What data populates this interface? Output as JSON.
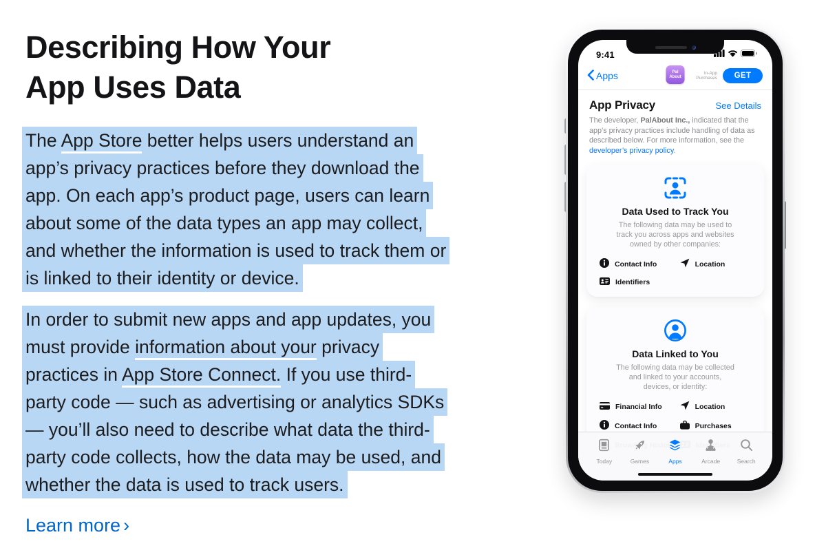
{
  "colors": {
    "accent_blue": "#007aff",
    "link_blue": "#0066cc",
    "selection_highlight": "#b8d7f4",
    "app_icon_purple": "#9b5be0",
    "muted_gray": "#8b8b90"
  },
  "article": {
    "title_lines": [
      "Describing How Your",
      "App Uses Data"
    ],
    "paragraphs": [
      {
        "lines": [
          [
            {
              "t": "The "
            },
            {
              "t": "App Store",
              "u": true
            },
            {
              "t": " better helps users understand an"
            }
          ],
          [
            {
              "t": "app’s privacy practices before they download the"
            }
          ],
          [
            {
              "t": "app. On each app’s product page, users can learn"
            }
          ],
          [
            {
              "t": "about some of the data types an app may collect,"
            }
          ],
          [
            {
              "t": "and whether the information is used to track them or"
            }
          ],
          [
            {
              "t": "is linked to their identity or device."
            }
          ]
        ]
      },
      {
        "lines": [
          [
            {
              "t": "In order to submit new apps and app updates, you"
            }
          ],
          [
            {
              "t": "must provide "
            },
            {
              "t": "information about your",
              "u": true
            },
            {
              "t": " privacy"
            }
          ],
          [
            {
              "t": "practices in "
            },
            {
              "t": "App Store Connect.",
              "u": true
            },
            {
              "t": " If you use third-"
            }
          ],
          [
            {
              "t": "party code — such as advertising or analytics SDKs"
            }
          ],
          [
            {
              "t": "— you’ll also need to describe what data the third-"
            }
          ],
          [
            {
              "t": "party code collects, how the data may be used, and"
            }
          ],
          [
            {
              "t": "whether the data is used to track users."
            }
          ]
        ]
      }
    ],
    "learn_more_label": "Learn more",
    "learn_more_chevron": "›"
  },
  "phone": {
    "status_bar": {
      "time": "9:41",
      "icons": [
        "cellular-signal-icon",
        "wifi-icon",
        "battery-icon"
      ]
    },
    "nav": {
      "back_icon": "chevron-left-icon",
      "back_label": "Apps",
      "app_icon_lines": [
        "Pal",
        "About"
      ],
      "iap_lines": [
        "In-App",
        "Purchases"
      ],
      "get_label": "GET"
    },
    "header": {
      "title": "App Privacy",
      "action": "See Details"
    },
    "developer_note": [
      {
        "t": "The developer, "
      },
      {
        "t": "PalAbout Inc.,",
        "b": true
      },
      {
        "t": " indicated that the app’s privacy practices include handling of data as described below. For more information, see the "
      },
      {
        "t": "developer’s privacy policy",
        "link": true
      },
      {
        "t": "."
      }
    ],
    "cards": [
      {
        "icon": "person-viewfinder-icon",
        "title": "Data Used to Track You",
        "desc_lines": [
          "The following data may be used to",
          "track you across apps and websites",
          "owned by other companies:"
        ],
        "items": [
          {
            "icon": "info-circle-icon",
            "label": "Contact Info"
          },
          {
            "icon": "location-arrow-icon",
            "label": "Location"
          },
          {
            "icon": "identifiers-card-icon",
            "label": "Identifiers"
          }
        ]
      },
      {
        "icon": "person-circle-icon",
        "title": "Data Linked to You",
        "desc_lines": [
          "The following data may be collected",
          "and linked to your accounts,",
          "devices, or identity:"
        ],
        "items": [
          {
            "icon": "financial-card-icon",
            "label": "Financial Info"
          },
          {
            "icon": "location-arrow-icon",
            "label": "Location"
          },
          {
            "icon": "info-circle-icon",
            "label": "Contact Info"
          },
          {
            "icon": "purchases-bag-icon",
            "label": "Purchases"
          },
          {
            "icon": "browsing-history-icon",
            "label": "Browsing History"
          },
          {
            "icon": "identifiers-card-icon",
            "label": "Identifiers"
          }
        ]
      }
    ],
    "tab_bar": [
      {
        "icon": "today-icon",
        "label": "Today",
        "active": false
      },
      {
        "icon": "games-rocket-icon",
        "label": "Games",
        "active": false
      },
      {
        "icon": "apps-layers-icon",
        "label": "Apps",
        "active": true
      },
      {
        "icon": "arcade-joystick-icon",
        "label": "Arcade",
        "active": false
      },
      {
        "icon": "search-icon",
        "label": "Search",
        "active": false
      }
    ]
  }
}
